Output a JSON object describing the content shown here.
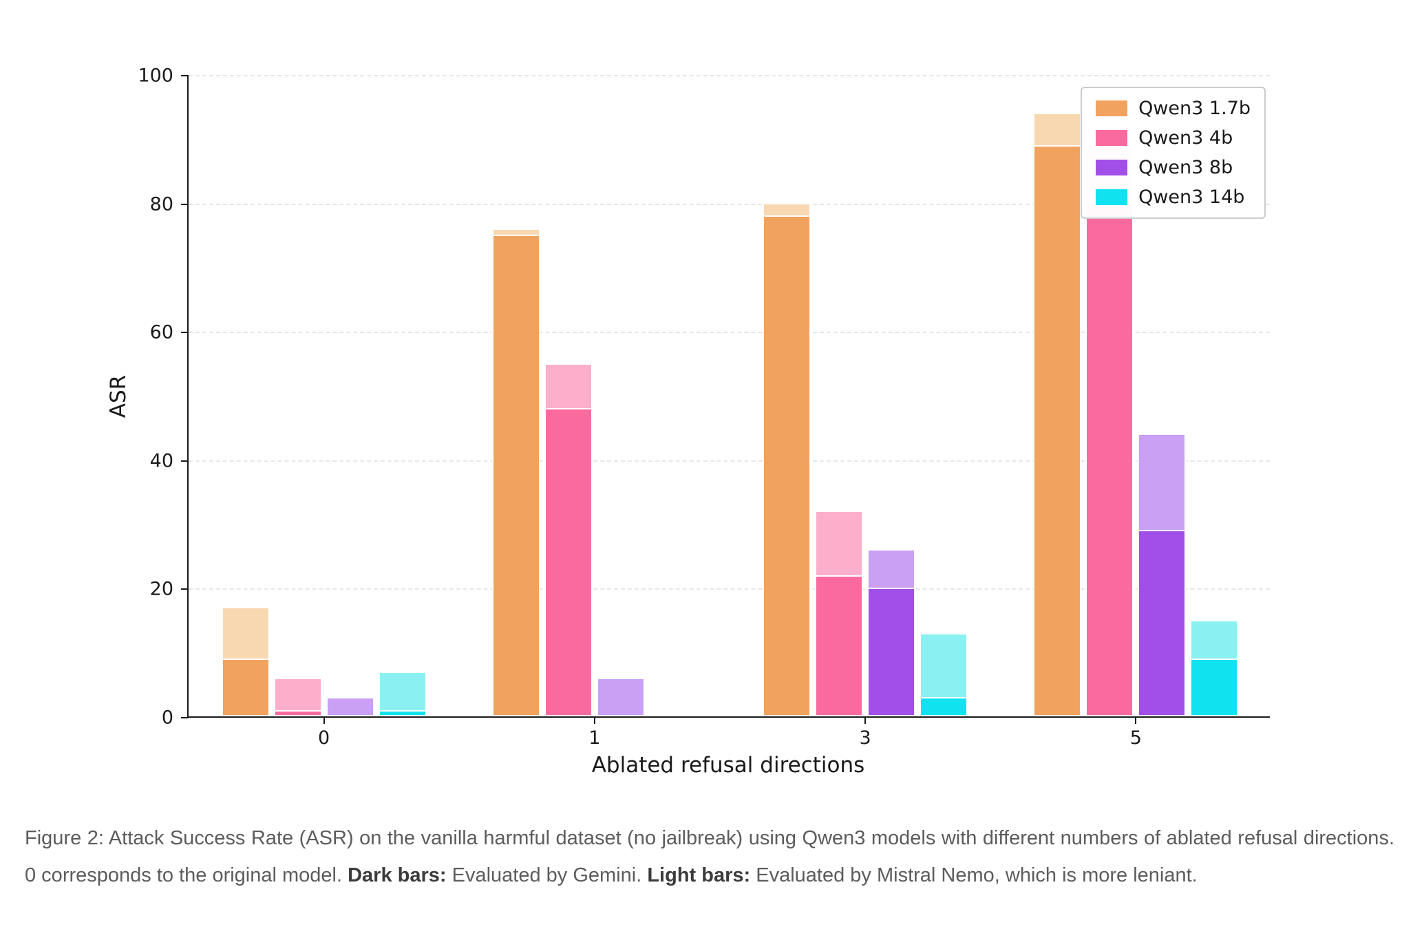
{
  "chart_data": {
    "type": "bar",
    "title": "",
    "xlabel": "Ablated refusal directions",
    "ylabel": "ASR",
    "ylim": [
      0,
      100
    ],
    "yticks": [
      0,
      20,
      40,
      60,
      80,
      100
    ],
    "categories": [
      "0",
      "1",
      "3",
      "5"
    ],
    "grid": "horizontal-dashed",
    "legend_position": "upper right",
    "series": [
      {
        "name": "Qwen3 1.7b",
        "dark_color": "#F0A25E",
        "light_color": "#F8D8B0",
        "dark_values": [
          9,
          75,
          78,
          89
        ],
        "light_values": [
          17,
          76,
          80,
          94
        ]
      },
      {
        "name": "Qwen3 4b",
        "dark_color": "#FA6A9F",
        "light_color": "#FCAECB",
        "dark_values": [
          1,
          48,
          22,
          80
        ],
        "light_values": [
          6,
          55,
          32,
          89
        ]
      },
      {
        "name": "Qwen3 8b",
        "dark_color": "#A14FE8",
        "light_color": "#C9A0F4",
        "dark_values": [
          0,
          0,
          20,
          29
        ],
        "light_values": [
          3,
          6,
          26,
          44
        ]
      },
      {
        "name": "Qwen3 14b",
        "dark_color": "#10E2EF",
        "light_color": "#8BF0F2",
        "dark_values": [
          1,
          0,
          3,
          9
        ],
        "light_values": [
          7,
          0,
          13,
          15
        ]
      }
    ]
  },
  "caption": {
    "text_1": "Figure 2: Attack Success Rate (ASR) on the vanilla harmful dataset (no jailbreak) using Qwen3 models with different numbers of ablated refusal directions. 0 corresponds to the original model. ",
    "bold_1": "Dark bars:",
    "text_2": " Evaluated by Gemini. ",
    "bold_2": "Light bars:",
    "text_3": " Evaluated by Mistral Nemo, which is more leniant."
  }
}
